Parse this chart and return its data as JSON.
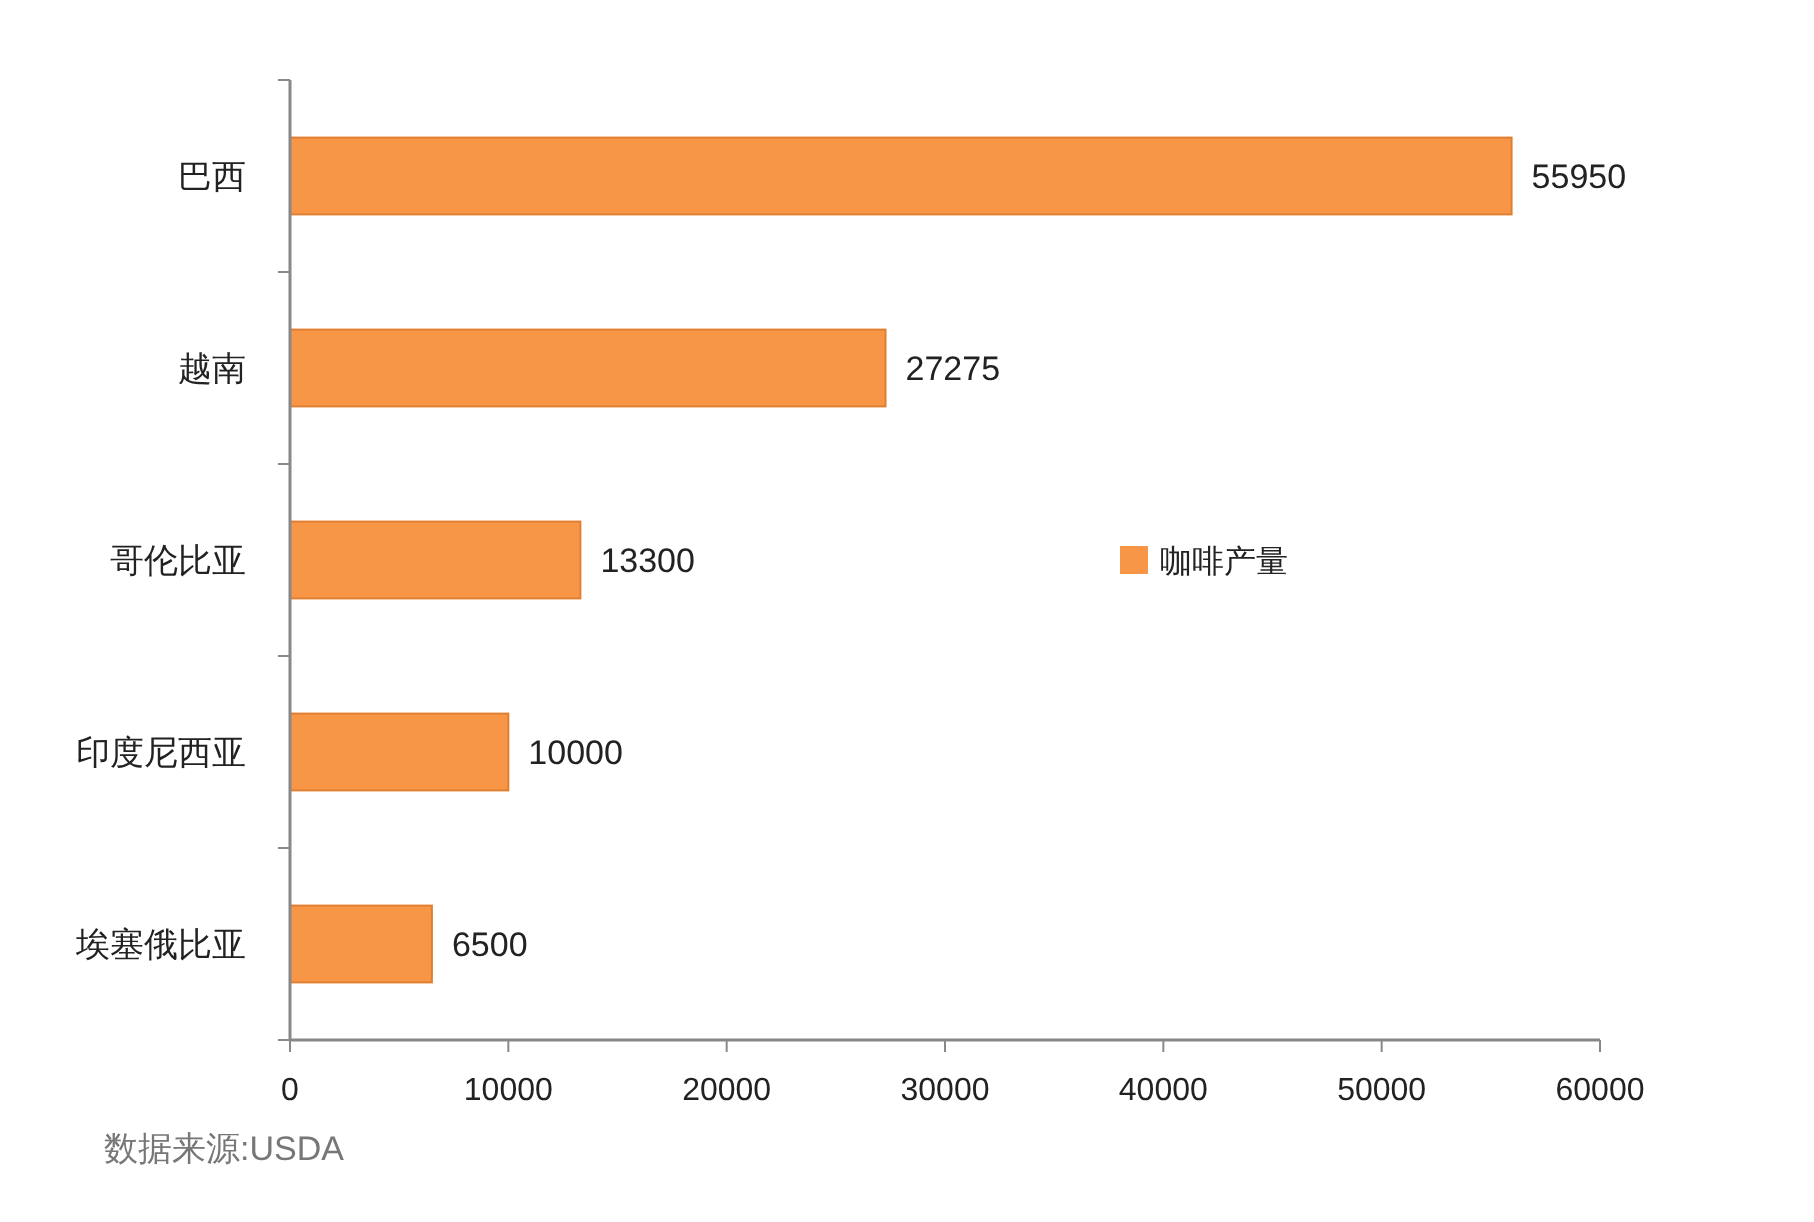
{
  "chart_data": {
    "type": "bar",
    "orientation": "horizontal",
    "categories": [
      "巴西",
      "越南",
      "哥伦比亚",
      "印度尼西亚",
      "埃塞俄比亚"
    ],
    "series": [
      {
        "name": "咖啡产量",
        "color": "#f79646",
        "values": [
          55950,
          27275,
          13300,
          10000,
          6500
        ]
      }
    ],
    "xlim": [
      0,
      60000
    ],
    "xticks": [
      0,
      10000,
      20000,
      30000,
      40000,
      50000,
      60000
    ],
    "data_labels": true,
    "legend": "right",
    "grid": false,
    "annotations": [
      "数据来源:USDA"
    ]
  }
}
